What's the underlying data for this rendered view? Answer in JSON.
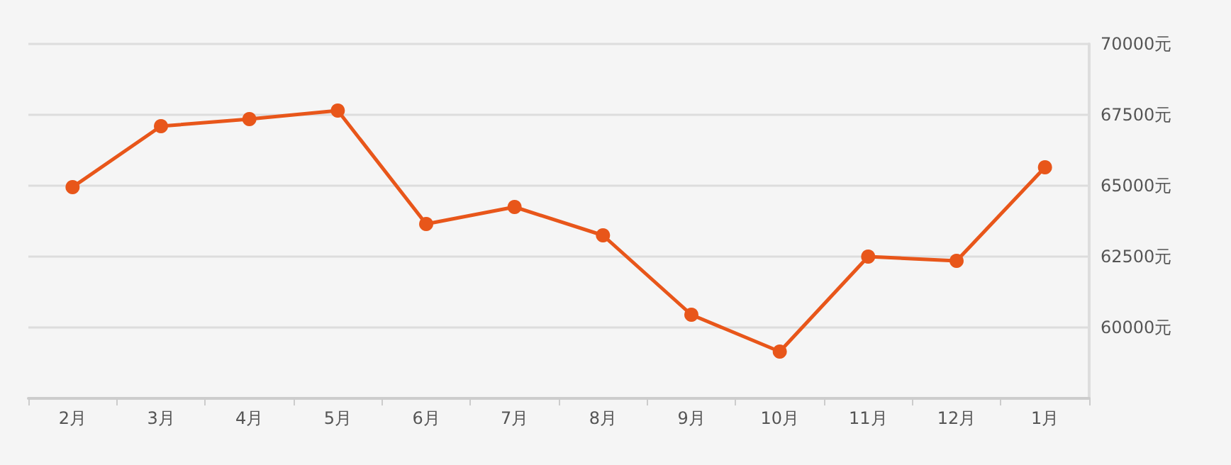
{
  "chart_data": {
    "type": "line",
    "categories": [
      "2月",
      "3月",
      "4月",
      "5月",
      "6月",
      "7月",
      "8月",
      "9月",
      "10月",
      "11月",
      "12月",
      "1月"
    ],
    "series": [
      {
        "color": "#e8561a",
        "values": [
          64950,
          67100,
          67350,
          67650,
          63650,
          64250,
          63250,
          60450,
          59150,
          62500,
          62350,
          65650
        ]
      }
    ],
    "ylim": [
      57500,
      70000
    ],
    "yticks": [
      {
        "value": 60000,
        "label": "60000元"
      },
      {
        "value": 62500,
        "label": "62500元"
      },
      {
        "value": 65000,
        "label": "65000元"
      },
      {
        "value": 67500,
        "label": "67500元"
      },
      {
        "value": 70000,
        "label": "70000元"
      }
    ],
    "grid": "y",
    "marker": "circle",
    "line_style": "solid"
  }
}
